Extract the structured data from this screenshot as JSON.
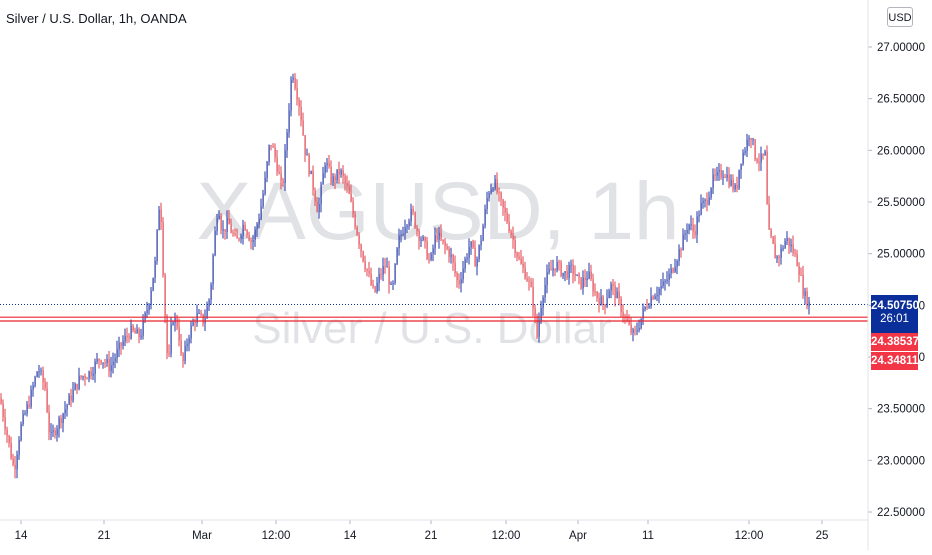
{
  "title": "Silver / U.S. Dollar, 1h, OANDA",
  "currency_button": "USD",
  "watermark": {
    "symbol": "XAGUSD, 1h",
    "name": "Silver / U.S. Dollar"
  },
  "colors": {
    "up": "#2135a6",
    "down": "#e0424a",
    "hline": "#e8252f",
    "last_tag": "#0b2f9a",
    "red_tag": "#f23645",
    "axis_text": "#131722"
  },
  "last_price": {
    "value": "24.50750",
    "countdown": "26:01"
  },
  "horizontal_lines": [
    "24.38537",
    "24.34811"
  ],
  "chart_data": {
    "type": "candlestick",
    "title": "Silver / U.S. Dollar, 1h, OANDA",
    "y_axis": {
      "ticks": [
        "27.00000",
        "26.50000",
        "26.00000",
        "25.50000",
        "25.00000",
        "24.50000",
        "24.00000",
        "23.50000",
        "23.00000",
        "22.50000"
      ],
      "position": "right"
    },
    "x_axis": {
      "ticks": [
        "14",
        "21",
        "Mar",
        "12:00",
        "14",
        "21",
        "12:00",
        "Apr",
        "11",
        "12:00",
        "25"
      ]
    },
    "ylim": [
      22.5,
      27.0
    ],
    "grid": false,
    "path_points": [
      [
        0,
        23.6
      ],
      [
        10,
        23.1
      ],
      [
        14,
        22.9
      ],
      [
        20,
        23.3
      ],
      [
        30,
        23.6
      ],
      [
        38,
        23.9
      ],
      [
        45,
        23.7
      ],
      [
        50,
        23.2
      ],
      [
        60,
        23.4
      ],
      [
        70,
        23.6
      ],
      [
        80,
        23.8
      ],
      [
        90,
        23.85
      ],
      [
        100,
        24.0
      ],
      [
        110,
        23.9
      ],
      [
        120,
        24.1
      ],
      [
        130,
        24.25
      ],
      [
        140,
        24.2
      ],
      [
        148,
        24.5
      ],
      [
        155,
        24.9
      ],
      [
        160,
        25.6
      ],
      [
        164,
        24.6
      ],
      [
        168,
        23.85
      ],
      [
        172,
        24.4
      ],
      [
        178,
        24.3
      ],
      [
        182,
        23.9
      ],
      [
        188,
        24.2
      ],
      [
        196,
        24.4
      ],
      [
        204,
        24.35
      ],
      [
        210,
        24.6
      ],
      [
        214,
        25.1
      ],
      [
        218,
        25.5
      ],
      [
        222,
        25.2
      ],
      [
        228,
        25.3
      ],
      [
        236,
        25.1
      ],
      [
        244,
        25.3
      ],
      [
        252,
        25.1
      ],
      [
        260,
        25.4
      ],
      [
        265,
        25.7
      ],
      [
        270,
        26.1
      ],
      [
        276,
        25.9
      ],
      [
        282,
        25.6
      ],
      [
        288,
        26.3
      ],
      [
        292,
        26.8
      ],
      [
        296,
        26.6
      ],
      [
        300,
        26.4
      ],
      [
        305,
        26.0
      ],
      [
        312,
        25.7
      ],
      [
        318,
        25.4
      ],
      [
        325,
        25.9
      ],
      [
        332,
        25.7
      ],
      [
        340,
        25.8
      ],
      [
        348,
        25.6
      ],
      [
        355,
        25.3
      ],
      [
        362,
        25.0
      ],
      [
        368,
        24.8
      ],
      [
        374,
        24.6
      ],
      [
        380,
        24.8
      ],
      [
        386,
        24.9
      ],
      [
        392,
        24.6
      ],
      [
        398,
        25.1
      ],
      [
        405,
        25.3
      ],
      [
        412,
        25.4
      ],
      [
        418,
        25.2
      ],
      [
        424,
        25.1
      ],
      [
        430,
        24.9
      ],
      [
        436,
        25.2
      ],
      [
        442,
        25.1
      ],
      [
        450,
        25.0
      ],
      [
        458,
        24.7
      ],
      [
        464,
        24.9
      ],
      [
        470,
        25.1
      ],
      [
        476,
        24.9
      ],
      [
        482,
        25.2
      ],
      [
        488,
        25.6
      ],
      [
        494,
        25.7
      ],
      [
        500,
        25.5
      ],
      [
        508,
        25.3
      ],
      [
        514,
        25.1
      ],
      [
        520,
        24.9
      ],
      [
        526,
        24.8
      ],
      [
        532,
        24.6
      ],
      [
        537,
        24.2
      ],
      [
        542,
        24.6
      ],
      [
        548,
        24.8
      ],
      [
        556,
        24.9
      ],
      [
        564,
        24.8
      ],
      [
        572,
        24.85
      ],
      [
        580,
        24.7
      ],
      [
        588,
        24.8
      ],
      [
        596,
        24.6
      ],
      [
        604,
        24.5
      ],
      [
        610,
        24.7
      ],
      [
        616,
        24.6
      ],
      [
        622,
        24.45
      ],
      [
        628,
        24.3
      ],
      [
        634,
        24.2
      ],
      [
        640,
        24.35
      ],
      [
        646,
        24.5
      ],
      [
        652,
        24.6
      ],
      [
        658,
        24.65
      ],
      [
        664,
        24.7
      ],
      [
        670,
        24.8
      ],
      [
        676,
        24.95
      ],
      [
        682,
        25.1
      ],
      [
        688,
        25.3
      ],
      [
        694,
        25.2
      ],
      [
        700,
        25.45
      ],
      [
        706,
        25.5
      ],
      [
        712,
        25.7
      ],
      [
        718,
        25.75
      ],
      [
        724,
        25.8
      ],
      [
        730,
        25.7
      ],
      [
        736,
        25.6
      ],
      [
        740,
        25.9
      ],
      [
        746,
        26.05
      ],
      [
        750,
        26.2
      ],
      [
        755,
        25.95
      ],
      [
        760,
        25.9
      ],
      [
        765,
        25.95
      ],
      [
        768,
        25.2
      ],
      [
        772,
        25.1
      ],
      [
        776,
        24.95
      ],
      [
        780,
        25.0
      ],
      [
        786,
        25.15
      ],
      [
        792,
        25.05
      ],
      [
        798,
        24.9
      ],
      [
        804,
        24.6
      ],
      [
        810,
        24.5
      ]
    ]
  }
}
